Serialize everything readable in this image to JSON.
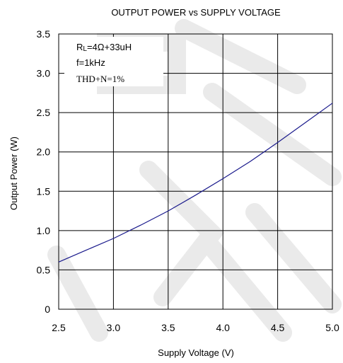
{
  "chart_data": {
    "type": "line",
    "title": "OUTPUT POWER vs SUPPLY VOLTAGE",
    "xlabel": "Supply Voltage (V)",
    "ylabel": "Output Power (W)",
    "xlim": [
      2.5,
      5.0
    ],
    "ylim": [
      0,
      3.5
    ],
    "x_ticks": [
      "2.5",
      "3.0",
      "3.5",
      "4.0",
      "4.5",
      "5.0"
    ],
    "y_ticks": [
      "0",
      "0.5",
      "1.0",
      "1.5",
      "2.0",
      "2.5",
      "3.0",
      "3.5"
    ],
    "grid": true,
    "annotations": {
      "line1_main": "R",
      "line1_sub": "L",
      "line1_rest": "=4Ω+33uH",
      "line2": "f=1kHz",
      "line3": "THD+N=1%"
    },
    "series": [
      {
        "color": "#1a1a8c",
        "x": [
          2.5,
          2.75,
          3.0,
          3.25,
          3.5,
          3.75,
          4.0,
          4.25,
          4.5,
          4.75,
          5.0
        ],
        "y": [
          0.6,
          0.75,
          0.9,
          1.07,
          1.25,
          1.45,
          1.66,
          1.88,
          2.12,
          2.37,
          2.62
        ]
      }
    ]
  }
}
